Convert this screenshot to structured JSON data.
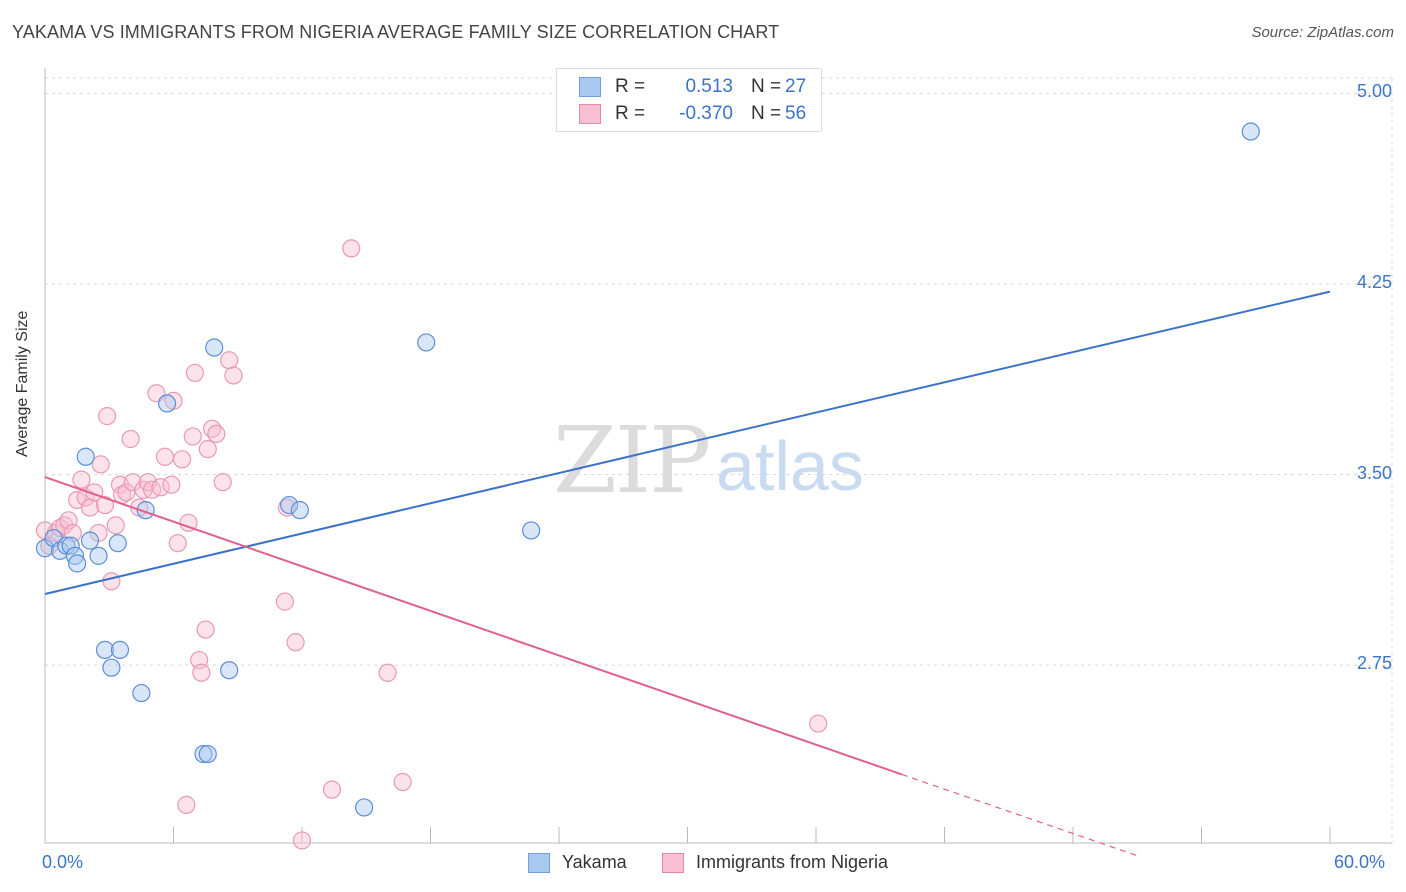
{
  "title": "YAKAMA VS IMMIGRANTS FROM NIGERIA AVERAGE FAMILY SIZE CORRELATION CHART",
  "source": "Source: ZipAtlas.com",
  "watermark": {
    "zip": "ZIP",
    "atlas": "atlas"
  },
  "legend": {
    "rows": [
      {
        "r_label": "R =",
        "r_value": "0.513",
        "n_label": "N =",
        "n_value": "27",
        "color": "#a9c8f0",
        "stroke": "#6f9fdc"
      },
      {
        "r_label": "R =",
        "r_value": "-0.370",
        "n_label": "N =",
        "n_value": "56",
        "color": "#f8bfd0",
        "stroke": "#e888a6"
      }
    ]
  },
  "bottom_legend": {
    "series_a": "Yakama",
    "series_b": "Immigrants from Nigeria"
  },
  "axis": {
    "x_min_label": "0.0%",
    "x_max_label": "60.0%",
    "ylabel": "Average Family Size"
  },
  "colors": {
    "blue": "#3b73c9",
    "pink": "#e0608f",
    "blue_fill": "#a9c8f0",
    "pink_fill": "#f8bfd0"
  },
  "chart_data": {
    "type": "scatter",
    "title": "YAKAMA VS IMMIGRANTS FROM NIGERIA AVERAGE FAMILY SIZE CORRELATION CHART",
    "xlabel": "",
    "ylabel": "Average Family Size",
    "xlim": [
      0,
      60
    ],
    "ylim": [
      2.05,
      5.1
    ],
    "y_ticks": [
      2.75,
      3.5,
      4.25,
      5.0
    ],
    "y_tick_labels": [
      "2.75",
      "3.50",
      "4.25",
      "5.00"
    ],
    "grid": true,
    "series": [
      {
        "name": "Yakama",
        "points": [
          [
            0.0,
            3.21
          ],
          [
            0.4,
            3.25
          ],
          [
            0.7,
            3.2
          ],
          [
            1.0,
            3.22
          ],
          [
            1.2,
            3.22
          ],
          [
            1.4,
            3.18
          ],
          [
            1.5,
            3.15
          ],
          [
            1.9,
            3.57
          ],
          [
            2.1,
            3.24
          ],
          [
            2.5,
            3.18
          ],
          [
            2.8,
            2.81
          ],
          [
            3.1,
            2.74
          ],
          [
            3.4,
            3.23
          ],
          [
            3.5,
            2.81
          ],
          [
            4.5,
            2.64
          ],
          [
            4.7,
            3.36
          ],
          [
            5.7,
            3.78
          ],
          [
            7.4,
            2.4
          ],
          [
            7.6,
            2.4
          ],
          [
            7.9,
            4.0
          ],
          [
            8.6,
            2.73
          ],
          [
            11.4,
            3.38
          ],
          [
            11.9,
            3.36
          ],
          [
            14.9,
            2.19
          ],
          [
            17.8,
            4.02
          ],
          [
            22.7,
            3.28
          ],
          [
            56.3,
            4.85
          ]
        ],
        "trend": {
          "x0": 0,
          "y0": 3.03,
          "x1": 60,
          "y1": 4.22
        }
      },
      {
        "name": "Immigrants from Nigeria",
        "points": [
          [
            0.0,
            3.28
          ],
          [
            0.2,
            3.22
          ],
          [
            0.5,
            3.27
          ],
          [
            0.7,
            3.29
          ],
          [
            0.9,
            3.3
          ],
          [
            1.1,
            3.32
          ],
          [
            1.3,
            3.27
          ],
          [
            1.5,
            3.4
          ],
          [
            1.7,
            3.48
          ],
          [
            1.9,
            3.41
          ],
          [
            2.1,
            3.37
          ],
          [
            2.3,
            3.43
          ],
          [
            2.5,
            3.27
          ],
          [
            2.6,
            3.54
          ],
          [
            2.8,
            3.38
          ],
          [
            2.9,
            3.73
          ],
          [
            3.1,
            3.08
          ],
          [
            3.3,
            3.3
          ],
          [
            3.5,
            3.46
          ],
          [
            3.6,
            3.42
          ],
          [
            3.8,
            3.43
          ],
          [
            4.0,
            3.64
          ],
          [
            4.1,
            3.47
          ],
          [
            4.4,
            3.37
          ],
          [
            4.6,
            3.44
          ],
          [
            4.8,
            3.47
          ],
          [
            5.0,
            3.44
          ],
          [
            5.2,
            3.82
          ],
          [
            5.4,
            3.45
          ],
          [
            5.6,
            3.57
          ],
          [
            5.9,
            3.46
          ],
          [
            6.0,
            3.79
          ],
          [
            6.2,
            3.23
          ],
          [
            6.4,
            3.56
          ],
          [
            6.6,
            2.2
          ],
          [
            6.7,
            3.31
          ],
          [
            6.9,
            3.65
          ],
          [
            7.0,
            3.9
          ],
          [
            7.2,
            2.77
          ],
          [
            7.3,
            2.72
          ],
          [
            7.5,
            2.89
          ],
          [
            7.6,
            3.6
          ],
          [
            7.8,
            3.68
          ],
          [
            8.0,
            3.66
          ],
          [
            8.3,
            3.47
          ],
          [
            8.6,
            3.95
          ],
          [
            8.8,
            3.89
          ],
          [
            11.3,
            3.37
          ],
          [
            11.2,
            3.0
          ],
          [
            11.7,
            2.84
          ],
          [
            12.0,
            2.06
          ],
          [
            13.4,
            2.26
          ],
          [
            14.3,
            4.39
          ],
          [
            16.0,
            2.72
          ],
          [
            16.7,
            2.29
          ],
          [
            36.1,
            2.52
          ]
        ],
        "trend": {
          "x0": 0,
          "y0": 3.49,
          "x1": 40,
          "y1": 2.32
        },
        "trend_dashed": {
          "x0": 40,
          "y0": 2.32,
          "x1": 51,
          "y1": 2.0
        }
      }
    ]
  }
}
